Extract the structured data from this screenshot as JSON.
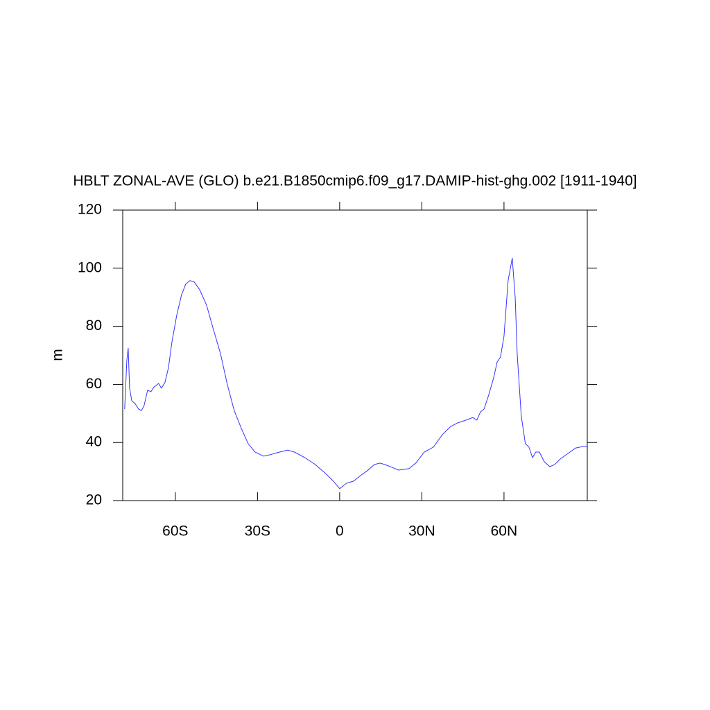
{
  "chart_data": {
    "type": "line",
    "title": "HBLT ZONAL-AVE (GLO) b.e21.B1850cmip6.f09_g17.DAMIP-hist-ghg.002 [1911-1940]",
    "ylabel": "m",
    "xlim": [
      -79.2,
      90.4
    ],
    "ylim": [
      20,
      120
    ],
    "xticks": [
      {
        "value": -60,
        "label": "60S"
      },
      {
        "value": -30,
        "label": "30S"
      },
      0,
      {
        "value": 30,
        "label": "30N"
      },
      {
        "value": 60,
        "label": "60N"
      }
    ],
    "yticks": [
      20,
      40,
      60,
      80,
      100,
      120
    ],
    "series": [
      {
        "color": "#3333ff",
        "x": [
          -78.5,
          -77.7,
          -77.2,
          -76.7,
          -75.9,
          -74.7,
          -73.4,
          -72.4,
          -71.4,
          -70.1,
          -68.9,
          -67.8,
          -66.1,
          -65.1,
          -63.8,
          -62.5,
          -61.3,
          -59.5,
          -57.7,
          -56.2,
          -54.7,
          -53.2,
          -51.1,
          -48.6,
          -46.1,
          -43.5,
          -41.0,
          -38.5,
          -35.9,
          -33.4,
          -30.9,
          -27.8,
          -25.3,
          -22.8,
          -19.0,
          -16.5,
          -12.7,
          -8.9,
          -5.1,
          -2.5,
          0,
          2.5,
          5.1,
          7.6,
          10.1,
          12.7,
          14.7,
          16.5,
          19.0,
          21.5,
          25.3,
          27.8,
          30.9,
          34.2,
          37.5,
          40.5,
          43.0,
          46.1,
          48.6,
          50.1,
          51.4,
          52.7,
          54.4,
          56.2,
          57.5,
          58.7,
          60.0,
          61.5,
          63.0,
          64.1,
          64.8,
          66.3,
          67.8,
          69.1,
          70.4,
          71.6,
          72.9,
          74.7,
          76.7,
          78.5,
          80.5,
          83.0,
          86.1,
          88.6,
          90.4
        ],
        "values": [
          51.5,
          68.2,
          72.5,
          58.7,
          54.4,
          53.4,
          51.5,
          51.0,
          52.7,
          58.0,
          57.5,
          59.1,
          60.3,
          58.7,
          60.6,
          65.8,
          74.2,
          83.7,
          90.9,
          94.5,
          95.7,
          95.4,
          92.6,
          87.3,
          78.9,
          70.6,
          59.9,
          51.0,
          44.8,
          39.6,
          36.7,
          35.3,
          35.8,
          36.5,
          37.4,
          36.7,
          34.8,
          32.4,
          29.3,
          26.9,
          24.1,
          26.0,
          26.7,
          28.6,
          30.3,
          32.4,
          32.9,
          32.4,
          31.5,
          30.5,
          31.0,
          32.9,
          36.7,
          38.4,
          42.7,
          45.5,
          46.7,
          47.7,
          48.6,
          47.7,
          50.5,
          51.5,
          56.3,
          62.2,
          67.7,
          69.4,
          76.6,
          95.7,
          103.5,
          89.7,
          70.6,
          49.1,
          39.6,
          38.4,
          34.8,
          36.7,
          36.7,
          33.4,
          31.7,
          32.4,
          34.3,
          36.0,
          38.1,
          38.6,
          38.6
        ]
      }
    ]
  }
}
